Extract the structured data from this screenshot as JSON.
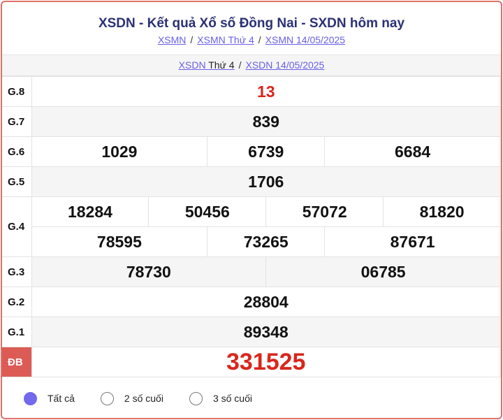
{
  "header": {
    "title": "XSDN - Kết quả Xổ số Đồng Nai - SXDN hôm nay",
    "breadcrumbs": [
      "XSMN",
      "XSMN Thứ 4",
      "XSMN 14/05/2025"
    ],
    "separator": "/"
  },
  "subnav": {
    "link1_prefix": "XSDN",
    "link1_suffix": "Thứ 4",
    "link2": "XSDN 14/05/2025"
  },
  "results": {
    "g8": {
      "label": "G.8",
      "values": [
        "13"
      ]
    },
    "g7": {
      "label": "G.7",
      "values": [
        "839"
      ]
    },
    "g6": {
      "label": "G.6",
      "values": [
        "1029",
        "6739",
        "6684"
      ]
    },
    "g5": {
      "label": "G.5",
      "values": [
        "1706"
      ]
    },
    "g4": {
      "label": "G.4",
      "values": [
        "18284",
        "50456",
        "57072",
        "81820",
        "78595",
        "73265",
        "87671"
      ]
    },
    "g3": {
      "label": "G.3",
      "values": [
        "78730",
        "06785"
      ]
    },
    "g2": {
      "label": "G.2",
      "values": [
        "28804"
      ]
    },
    "g1": {
      "label": "G.1",
      "values": [
        "89348"
      ]
    },
    "db": {
      "label": "ĐB",
      "values": [
        "331525"
      ]
    }
  },
  "filters": {
    "options": [
      "Tất cả",
      "2 số cuối",
      "3 số cuối"
    ],
    "selected": "Tất cả"
  },
  "colors": {
    "accent": "#d9261c",
    "title": "#2b3175",
    "link": "#6a5fe8",
    "special_label_bg": "#dc5b55",
    "radio_selected": "#7269ec"
  }
}
